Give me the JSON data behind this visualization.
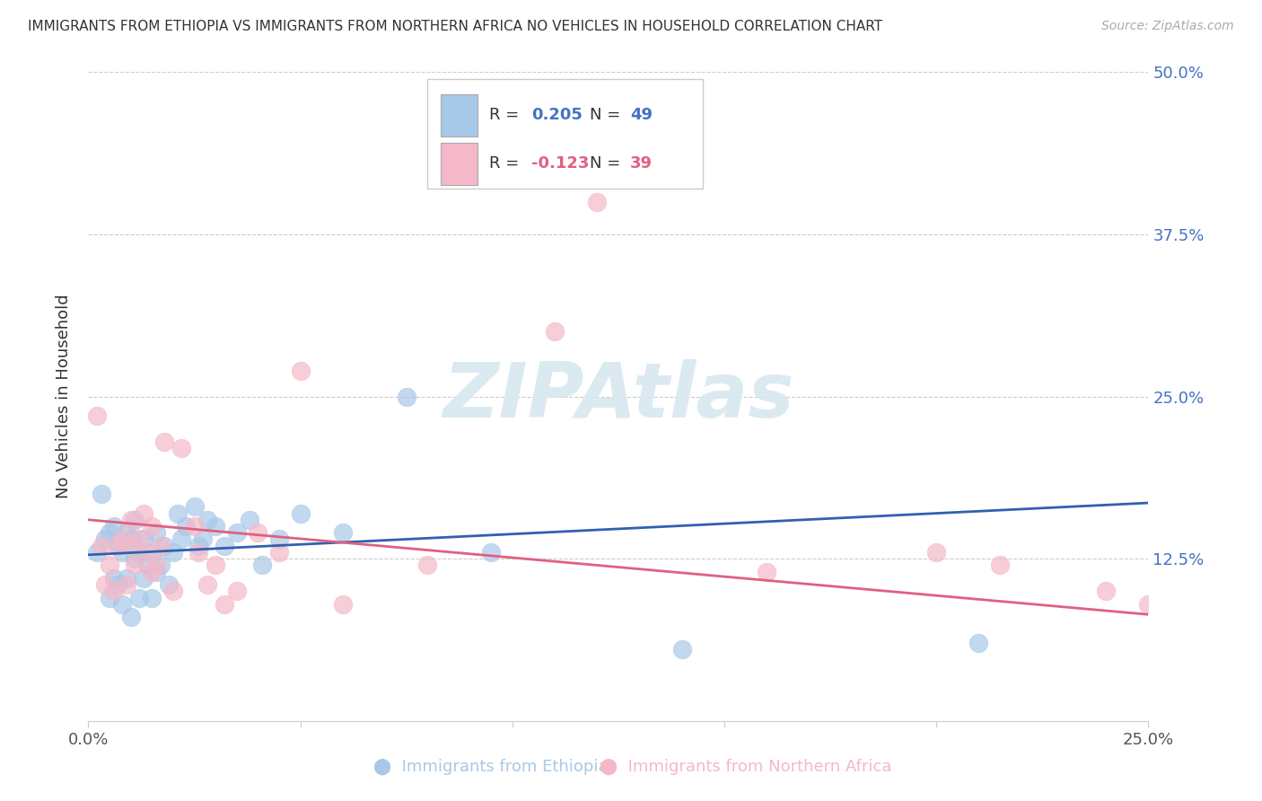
{
  "title": "IMMIGRANTS FROM ETHIOPIA VS IMMIGRANTS FROM NORTHERN AFRICA NO VEHICLES IN HOUSEHOLD CORRELATION CHART",
  "source": "Source: ZipAtlas.com",
  "ylabel": "No Vehicles in Household",
  "xlim": [
    0.0,
    0.25
  ],
  "ylim": [
    0.0,
    0.5
  ],
  "legend1_r": "0.205",
  "legend1_n": "49",
  "legend2_r": "-0.123",
  "legend2_n": "39",
  "blue_color": "#a8c8e8",
  "pink_color": "#f4b8c8",
  "blue_line_color": "#3060b0",
  "pink_line_color": "#e06080",
  "watermark": "ZIPAtlas",
  "ethiopia_x": [
    0.002,
    0.003,
    0.004,
    0.005,
    0.005,
    0.006,
    0.006,
    0.007,
    0.007,
    0.008,
    0.008,
    0.009,
    0.009,
    0.01,
    0.01,
    0.011,
    0.011,
    0.012,
    0.012,
    0.013,
    0.013,
    0.014,
    0.015,
    0.015,
    0.016,
    0.016,
    0.017,
    0.018,
    0.019,
    0.02,
    0.021,
    0.022,
    0.023,
    0.025,
    0.026,
    0.027,
    0.028,
    0.03,
    0.032,
    0.035,
    0.038,
    0.041,
    0.045,
    0.05,
    0.06,
    0.075,
    0.095,
    0.14,
    0.21
  ],
  "ethiopia_y": [
    0.13,
    0.175,
    0.14,
    0.095,
    0.145,
    0.11,
    0.15,
    0.105,
    0.135,
    0.09,
    0.13,
    0.11,
    0.145,
    0.08,
    0.14,
    0.125,
    0.155,
    0.095,
    0.13,
    0.11,
    0.14,
    0.12,
    0.095,
    0.13,
    0.115,
    0.145,
    0.12,
    0.135,
    0.105,
    0.13,
    0.16,
    0.14,
    0.15,
    0.165,
    0.135,
    0.14,
    0.155,
    0.15,
    0.135,
    0.145,
    0.155,
    0.12,
    0.14,
    0.16,
    0.145,
    0.25,
    0.13,
    0.055,
    0.06
  ],
  "northern_x": [
    0.002,
    0.003,
    0.004,
    0.005,
    0.006,
    0.007,
    0.008,
    0.009,
    0.01,
    0.01,
    0.011,
    0.012,
    0.013,
    0.014,
    0.015,
    0.015,
    0.016,
    0.017,
    0.018,
    0.02,
    0.022,
    0.025,
    0.026,
    0.028,
    0.03,
    0.032,
    0.035,
    0.04,
    0.045,
    0.05,
    0.06,
    0.11,
    0.2,
    0.215,
    0.24,
    0.25,
    0.08,
    0.12,
    0.16
  ],
  "northern_y": [
    0.235,
    0.135,
    0.105,
    0.12,
    0.1,
    0.135,
    0.14,
    0.105,
    0.155,
    0.135,
    0.12,
    0.14,
    0.16,
    0.13,
    0.115,
    0.15,
    0.12,
    0.135,
    0.215,
    0.1,
    0.21,
    0.15,
    0.13,
    0.105,
    0.12,
    0.09,
    0.1,
    0.145,
    0.13,
    0.27,
    0.09,
    0.3,
    0.13,
    0.12,
    0.1,
    0.09,
    0.12,
    0.4,
    0.115
  ],
  "blue_trend_start_x": 0.0,
  "blue_trend_end_x": 0.25,
  "blue_trend_start_y": 0.128,
  "blue_trend_end_y": 0.168,
  "pink_trend_start_x": 0.0,
  "pink_trend_end_x": 0.25,
  "pink_trend_start_y": 0.155,
  "pink_trend_end_y": 0.082
}
